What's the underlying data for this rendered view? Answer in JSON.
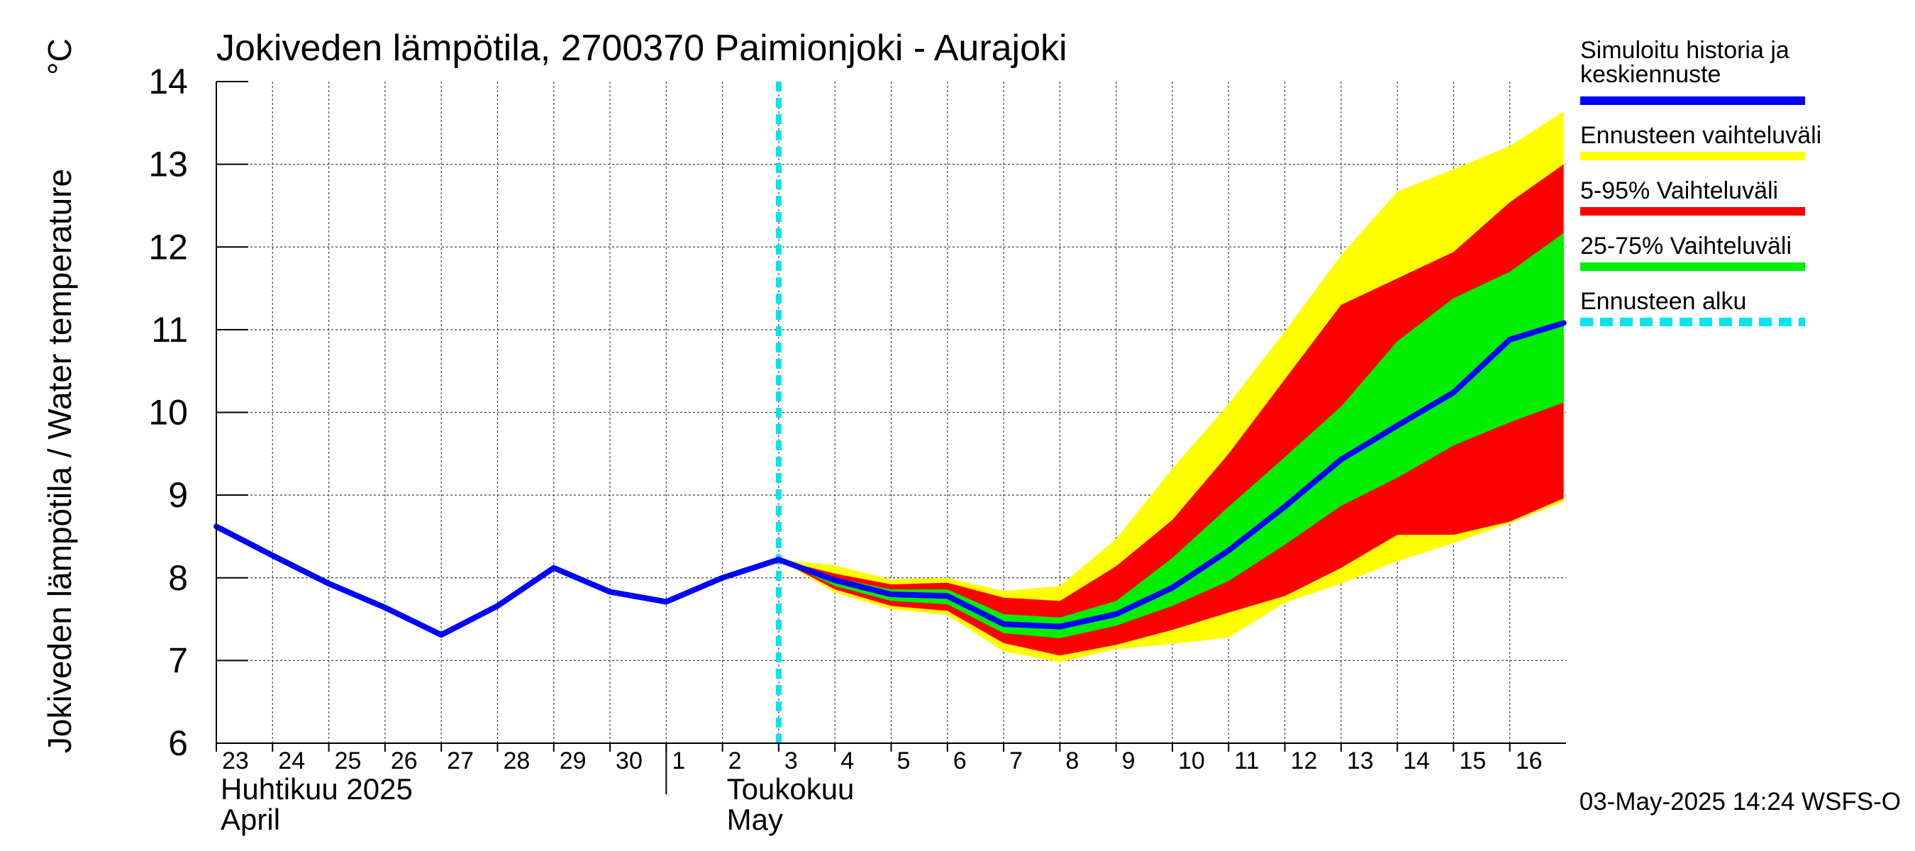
{
  "chart_data": {
    "type": "line",
    "title": "Jokiveden lämpötila, 2700370 Paimionjoki - Aurajoki",
    "ylabel": "Jokiveden lämpötila / Water temperature",
    "yunit": "°C",
    "ylim": [
      6,
      14
    ],
    "yticks": [
      6,
      7,
      8,
      9,
      10,
      11,
      12,
      13,
      14
    ],
    "x_start": "2025-04-23",
    "x_end": "2025-05-16",
    "day_labels": [
      {
        "date": "2025-04-23",
        "label": "23"
      },
      {
        "date": "2025-04-24",
        "label": "24"
      },
      {
        "date": "2025-04-25",
        "label": "25"
      },
      {
        "date": "2025-04-26",
        "label": "26"
      },
      {
        "date": "2025-04-27",
        "label": "27"
      },
      {
        "date": "2025-04-28",
        "label": "28"
      },
      {
        "date": "2025-04-29",
        "label": "29"
      },
      {
        "date": "2025-04-30",
        "label": "30"
      },
      {
        "date": "2025-05-01",
        "label": "1"
      },
      {
        "date": "2025-05-02",
        "label": "2"
      },
      {
        "date": "2025-05-03",
        "label": "3"
      },
      {
        "date": "2025-05-04",
        "label": "4"
      },
      {
        "date": "2025-05-05",
        "label": "5"
      },
      {
        "date": "2025-05-06",
        "label": "6"
      },
      {
        "date": "2025-05-07",
        "label": "7"
      },
      {
        "date": "2025-05-08",
        "label": "8"
      },
      {
        "date": "2025-05-09",
        "label": "9"
      },
      {
        "date": "2025-05-10",
        "label": "10"
      },
      {
        "date": "2025-05-11",
        "label": "11"
      },
      {
        "date": "2025-05-12",
        "label": "12"
      },
      {
        "date": "2025-05-13",
        "label": "13"
      },
      {
        "date": "2025-05-14",
        "label": "14"
      },
      {
        "date": "2025-05-15",
        "label": "15"
      },
      {
        "date": "2025-05-16",
        "label": "16"
      }
    ],
    "month_labels": [
      {
        "line1": "Huhtikuu  2025",
        "line2": "April",
        "date": "2025-04-23"
      },
      {
        "line1": "Toukokuu",
        "line2": "May",
        "date": "2025-05-02"
      }
    ],
    "month_divider_date": "2025-05-01",
    "forecast_start": "2025-05-03",
    "series": [
      {
        "name": "Simuloitu historia ja keskiennuste",
        "role": "median",
        "color": "#0000ff",
        "points": [
          [
            "2025-04-23",
            8.62
          ],
          [
            "2025-04-24",
            8.27
          ],
          [
            "2025-04-25",
            7.93
          ],
          [
            "2025-04-26",
            7.64
          ],
          [
            "2025-04-27",
            7.31
          ],
          [
            "2025-04-28",
            7.66
          ],
          [
            "2025-04-29",
            8.12
          ],
          [
            "2025-04-30",
            7.83
          ],
          [
            "2025-05-01",
            7.71
          ],
          [
            "2025-05-02",
            8.0
          ],
          [
            "2025-05-03",
            8.22
          ],
          [
            "2025-05-04",
            7.97
          ],
          [
            "2025-05-05",
            7.8
          ],
          [
            "2025-05-06",
            7.78
          ],
          [
            "2025-05-07",
            7.44
          ],
          [
            "2025-05-08",
            7.41
          ],
          [
            "2025-05-09",
            7.56
          ],
          [
            "2025-05-10",
            7.88
          ],
          [
            "2025-05-11",
            8.33
          ],
          [
            "2025-05-12",
            8.86
          ],
          [
            "2025-05-13",
            9.43
          ],
          [
            "2025-05-14",
            9.84
          ],
          [
            "2025-05-15",
            10.24
          ],
          [
            "2025-05-16",
            10.88
          ],
          [
            "2025-05-16T23:00",
            11.08
          ]
        ]
      }
    ],
    "bands": [
      {
        "name": "Ennusteen vaihteluväli",
        "color": "#ffff00",
        "dates": [
          "2025-05-03",
          "2025-05-04",
          "2025-05-05",
          "2025-05-06",
          "2025-05-07",
          "2025-05-08",
          "2025-05-09",
          "2025-05-10",
          "2025-05-11",
          "2025-05-12",
          "2025-05-13",
          "2025-05-14",
          "2025-05-15",
          "2025-05-16",
          "2025-05-16T23:00"
        ],
        "upper": [
          8.22,
          8.15,
          7.98,
          8.0,
          7.84,
          7.9,
          8.47,
          9.32,
          10.1,
          10.98,
          11.9,
          12.67,
          12.94,
          13.22,
          13.64
        ],
        "lower": [
          8.22,
          7.82,
          7.62,
          7.55,
          7.11,
          6.98,
          7.14,
          7.2,
          7.28,
          7.7,
          7.93,
          8.2,
          8.42,
          8.66,
          8.92
        ]
      },
      {
        "name": "5-95% Vaihteluväli",
        "color": "#ff0000",
        "dates": [
          "2025-05-03",
          "2025-05-04",
          "2025-05-05",
          "2025-05-06",
          "2025-05-07",
          "2025-05-08",
          "2025-05-09",
          "2025-05-10",
          "2025-05-11",
          "2025-05-12",
          "2025-05-13",
          "2025-05-14",
          "2025-05-15",
          "2025-05-16",
          "2025-05-16T23:00"
        ],
        "upper": [
          8.22,
          8.05,
          7.92,
          7.94,
          7.76,
          7.72,
          8.14,
          8.7,
          9.5,
          10.4,
          11.3,
          11.62,
          11.94,
          12.54,
          13.0
        ],
        "lower": [
          8.22,
          7.86,
          7.66,
          7.6,
          7.21,
          7.06,
          7.19,
          7.37,
          7.58,
          7.78,
          8.12,
          8.52,
          8.52,
          8.68,
          8.96
        ]
      },
      {
        "name": "25-75% Vaihteluväli",
        "color": "#00ee00",
        "dates": [
          "2025-05-03",
          "2025-05-04",
          "2025-05-05",
          "2025-05-06",
          "2025-05-07",
          "2025-05-08",
          "2025-05-09",
          "2025-05-10",
          "2025-05-11",
          "2025-05-12",
          "2025-05-13",
          "2025-05-14",
          "2025-05-15",
          "2025-05-16",
          "2025-05-16T23:00"
        ],
        "upper": [
          8.22,
          8.0,
          7.86,
          7.86,
          7.56,
          7.52,
          7.72,
          8.24,
          8.86,
          9.46,
          10.07,
          10.86,
          11.38,
          11.7,
          12.17
        ],
        "lower": [
          8.22,
          7.9,
          7.72,
          7.68,
          7.33,
          7.27,
          7.42,
          7.66,
          7.96,
          8.4,
          8.87,
          9.21,
          9.6,
          9.88,
          10.12
        ]
      }
    ],
    "legend": [
      {
        "label": "Simuloitu historia ja keskiennuste",
        "line1": "Simuloitu historia ja",
        "line2": "keskiennuste",
        "color": "#0000ff",
        "style": "solid"
      },
      {
        "label": "Ennusteen vaihteluväli",
        "color": "#ffff00",
        "style": "solid"
      },
      {
        "label": "5-95% Vaihteluväli",
        "color": "#ff0000",
        "style": "solid"
      },
      {
        "label": "25-75% Vaihteluväli",
        "color": "#00ee00",
        "style": "solid"
      },
      {
        "label": "Ennusteen alku",
        "color": "#00e5ee",
        "style": "dashed"
      }
    ],
    "legend_position": "right",
    "grid": true,
    "footer": "03-May-2025 14:24 WSFS-O"
  }
}
